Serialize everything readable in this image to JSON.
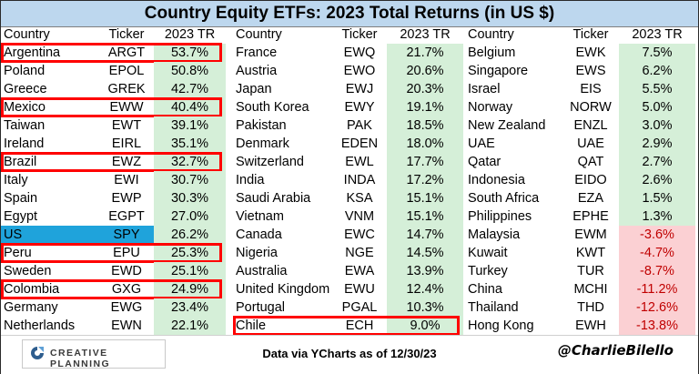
{
  "title": "Country Equity ETFs: 2023 Total Returns (in US $)",
  "headers": {
    "country": "Country",
    "ticker": "Ticker",
    "tr": "2023 TR"
  },
  "columns": [
    [
      {
        "country": "Argentina",
        "ticker": "ARGT",
        "tr": "53.7%"
      },
      {
        "country": "Poland",
        "ticker": "EPOL",
        "tr": "50.8%"
      },
      {
        "country": "Greece",
        "ticker": "GREK",
        "tr": "42.7%"
      },
      {
        "country": "Mexico",
        "ticker": "EWW",
        "tr": "40.4%"
      },
      {
        "country": "Taiwan",
        "ticker": "EWT",
        "tr": "39.1%"
      },
      {
        "country": "Ireland",
        "ticker": "EIRL",
        "tr": "35.1%"
      },
      {
        "country": "Brazil",
        "ticker": "EWZ",
        "tr": "32.7%"
      },
      {
        "country": "Italy",
        "ticker": "EWI",
        "tr": "30.7%"
      },
      {
        "country": "Spain",
        "ticker": "EWP",
        "tr": "30.3%"
      },
      {
        "country": "Egypt",
        "ticker": "EGPT",
        "tr": "27.0%"
      },
      {
        "country": "US",
        "ticker": "SPY",
        "tr": "26.2%"
      },
      {
        "country": "Peru",
        "ticker": "EPU",
        "tr": "25.3%"
      },
      {
        "country": "Sweden",
        "ticker": "EWD",
        "tr": "25.1%"
      },
      {
        "country": "Colombia",
        "ticker": "GXG",
        "tr": "24.9%"
      },
      {
        "country": "Germany",
        "ticker": "EWG",
        "tr": "23.4%"
      },
      {
        "country": "Netherlands",
        "ticker": "EWN",
        "tr": "22.1%"
      }
    ],
    [
      {
        "country": "France",
        "ticker": "EWQ",
        "tr": "21.7%"
      },
      {
        "country": "Austria",
        "ticker": "EWO",
        "tr": "20.6%"
      },
      {
        "country": "Japan",
        "ticker": "EWJ",
        "tr": "20.3%"
      },
      {
        "country": "South Korea",
        "ticker": "EWY",
        "tr": "19.1%"
      },
      {
        "country": "Pakistan",
        "ticker": "PAK",
        "tr": "18.5%"
      },
      {
        "country": "Denmark",
        "ticker": "EDEN",
        "tr": "18.0%"
      },
      {
        "country": "Switzerland",
        "ticker": "EWL",
        "tr": "17.7%"
      },
      {
        "country": "India",
        "ticker": "INDA",
        "tr": "17.2%"
      },
      {
        "country": "Saudi Arabia",
        "ticker": "KSA",
        "tr": "15.1%"
      },
      {
        "country": "Vietnam",
        "ticker": "VNM",
        "tr": "15.1%"
      },
      {
        "country": "Canada",
        "ticker": "EWC",
        "tr": "14.7%"
      },
      {
        "country": "Nigeria",
        "ticker": "NGE",
        "tr": "14.5%"
      },
      {
        "country": "Australia",
        "ticker": "EWA",
        "tr": "13.9%"
      },
      {
        "country": "United Kingdom",
        "ticker": "EWU",
        "tr": "12.4%"
      },
      {
        "country": "Portugal",
        "ticker": "PGAL",
        "tr": "10.3%"
      },
      {
        "country": "Chile",
        "ticker": "ECH",
        "tr": "9.0%"
      }
    ],
    [
      {
        "country": "Belgium",
        "ticker": "EWK",
        "tr": "7.5%"
      },
      {
        "country": "Singapore",
        "ticker": "EWS",
        "tr": "6.2%"
      },
      {
        "country": "Israel",
        "ticker": "EIS",
        "tr": "5.5%"
      },
      {
        "country": "Norway",
        "ticker": "NORW",
        "tr": "5.0%"
      },
      {
        "country": "New Zealand",
        "ticker": "ENZL",
        "tr": "3.0%"
      },
      {
        "country": "UAE",
        "ticker": "UAE",
        "tr": "2.9%"
      },
      {
        "country": "Qatar",
        "ticker": "QAT",
        "tr": "2.7%"
      },
      {
        "country": "Indonesia",
        "ticker": "EIDO",
        "tr": "2.6%"
      },
      {
        "country": "South Africa",
        "ticker": "EZA",
        "tr": "1.5%"
      },
      {
        "country": "Philippines",
        "ticker": "EPHE",
        "tr": "1.3%"
      },
      {
        "country": "Malaysia",
        "ticker": "EWM",
        "tr": "-3.6%"
      },
      {
        "country": "Kuwait",
        "ticker": "KWT",
        "tr": "-4.7%"
      },
      {
        "country": "Turkey",
        "ticker": "TUR",
        "tr": "-8.7%"
      },
      {
        "country": "China",
        "ticker": "MCHI",
        "tr": "-11.2%"
      },
      {
        "country": "Thailand",
        "ticker": "THD",
        "tr": "-12.6%"
      },
      {
        "country": "Hong Kong",
        "ticker": "EWH",
        "tr": "-13.8%"
      }
    ]
  ],
  "highlighted": [
    {
      "col": 0,
      "row": 0
    },
    {
      "col": 0,
      "row": 3
    },
    {
      "col": 0,
      "row": 6
    },
    {
      "col": 0,
      "row": 11
    },
    {
      "col": 0,
      "row": 13
    },
    {
      "col": 1,
      "row": 15
    }
  ],
  "us_highlight": {
    "col": 0,
    "row": 10,
    "color": "#1fa3db"
  },
  "colors": {
    "title_bg": "#bdd7ee",
    "positive_bg": "#d5efd8",
    "negative_bg": "#fbd0d3",
    "negative_text": "#c00000",
    "highlight_border": "#ff0000"
  },
  "footer": {
    "logo_text": "CREATIVE PLANNING",
    "source": "Data via YCharts as of 12/30/23",
    "handle": "@CharlieBilello"
  }
}
